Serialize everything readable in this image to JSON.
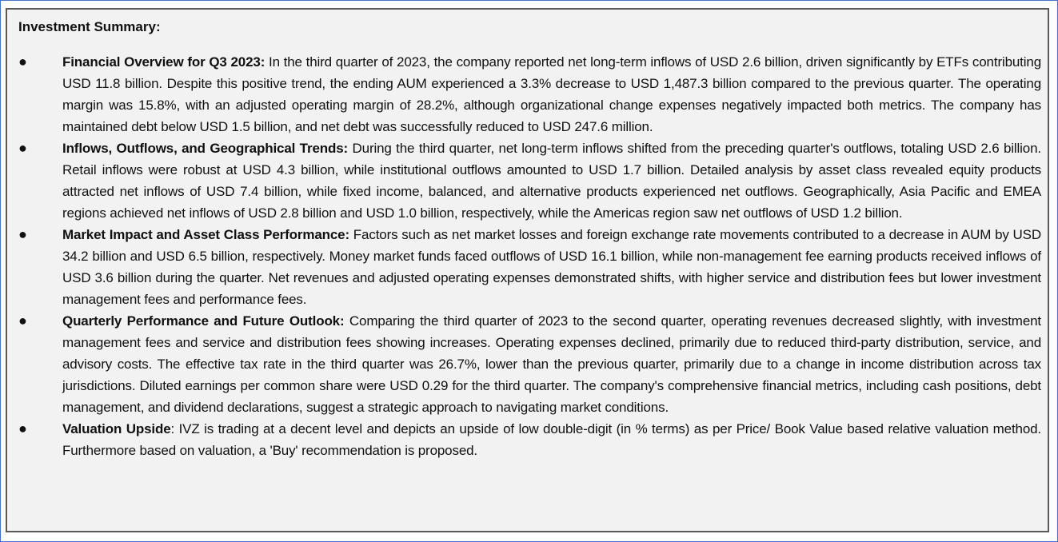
{
  "title": "Investment Summary:",
  "bullet_icon": "bullet-dot",
  "items": [
    {
      "heading": "Financial Overview for Q3 2023:",
      "text": " In the third quarter of 2023, the company reported net long-term inflows of USD 2.6 billion, driven significantly by ETFs contributing USD 11.8 billion. Despite this positive trend, the ending AUM experienced a 3.3% decrease to USD 1,487.3 billion compared to the previous quarter. The operating margin was 15.8%, with an adjusted operating margin of 28.2%, although organizational change expenses negatively impacted both metrics. The company has maintained debt below USD 1.5 billion, and net debt was successfully reduced to USD 247.6 million."
    },
    {
      "heading": "Inflows, Outflows, and Geographical Trends:",
      "text": " During the third quarter, net long-term inflows shifted from the preceding quarter's outflows, totaling USD 2.6 billion. Retail inflows were robust at USD 4.3 billion, while institutional outflows amounted to USD 1.7 billion. Detailed analysis by asset class revealed equity products attracted net inflows of USD 7.4 billion, while fixed income, balanced, and alternative products experienced net outflows. Geographically, Asia Pacific and EMEA regions achieved net inflows of USD 2.8 billion and USD 1.0 billion, respectively, while the Americas region saw net outflows of USD 1.2 billion."
    },
    {
      "heading": "Market Impact and Asset Class Performance:",
      "text": " Factors such as net market losses and foreign exchange rate movements contributed to a decrease in AUM by USD 34.2 billion and USD 6.5 billion, respectively. Money market funds faced outflows of USD 16.1 billion, while non-management fee earning products received inflows of USD 3.6 billion during the quarter. Net revenues and adjusted operating expenses demonstrated shifts, with higher service and distribution fees but lower investment management fees and performance fees."
    },
    {
      "heading": "Quarterly Performance and Future Outlook:",
      "text": " Comparing the third quarter of 2023 to the second quarter, operating revenues decreased slightly, with investment management fees and service and distribution fees showing increases. Operating expenses declined, primarily due to reduced third-party distribution, service, and advisory costs. The effective tax rate in the third quarter was 26.7%, lower than the previous quarter, primarily due to a change in income distribution across tax jurisdictions. Diluted earnings per common share were USD 0.29 for the third quarter. The company's comprehensive financial metrics, including cash positions, debt management, and dividend declarations, suggest a strategic approach to navigating market conditions."
    },
    {
      "heading": "Valuation Upside",
      "text": ": IVZ is trading at a decent level and depicts an upside of low double-digit (in % terms) as per Price/ Book Value based relative valuation method. Furthermore based on valuation, a 'Buy' recommendation is proposed."
    }
  ]
}
